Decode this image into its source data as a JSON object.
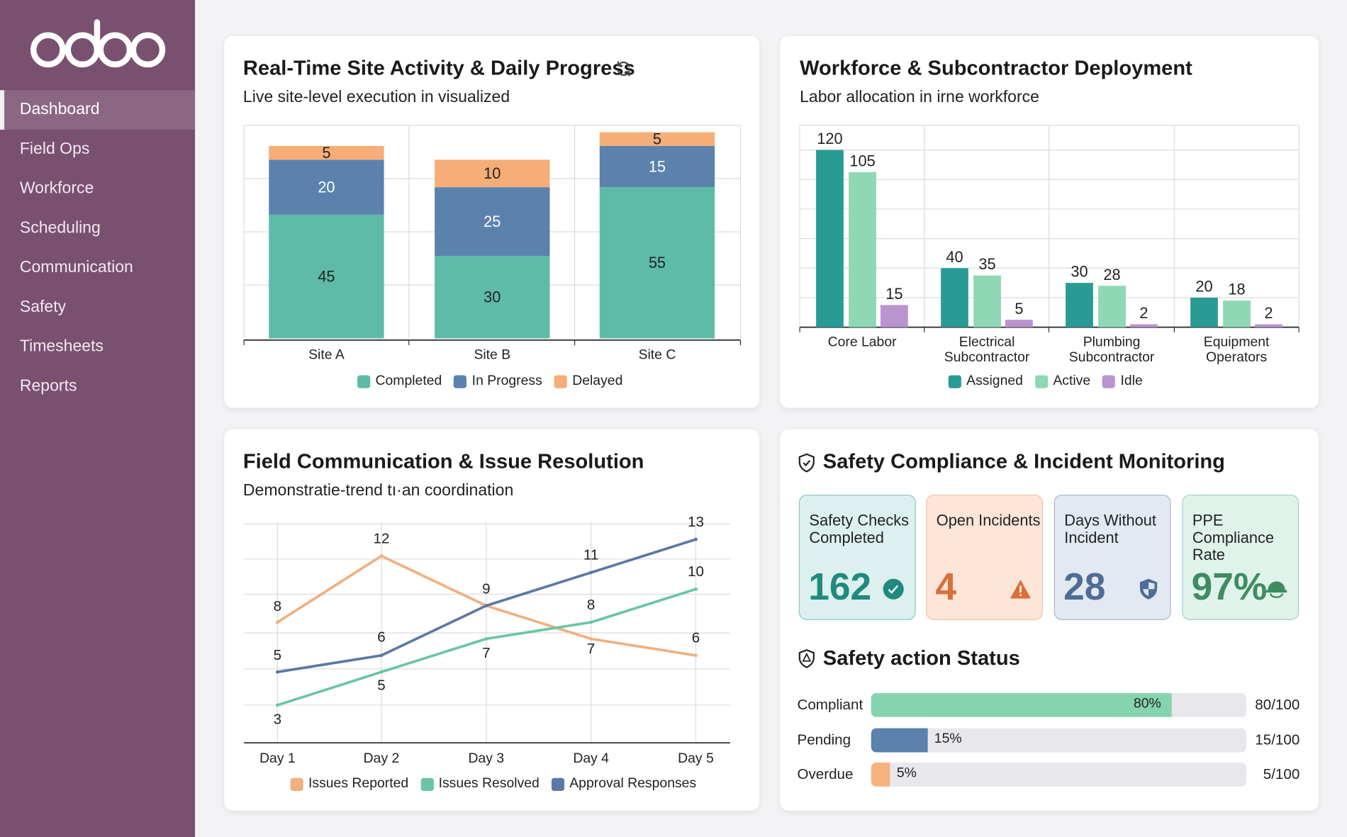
{
  "app": {
    "logo_text": "odoo"
  },
  "sidebar": {
    "items": [
      {
        "label": "Dashboard",
        "active": true
      },
      {
        "label": "Field Ops"
      },
      {
        "label": "Workforce"
      },
      {
        "label": "Scheduling"
      },
      {
        "label": "Communication"
      },
      {
        "label": "Safety"
      },
      {
        "label": "Timesheets"
      },
      {
        "label": "Reports"
      }
    ]
  },
  "cards": {
    "site_activity": {
      "title": "Real-Time Site Activity & Daily Progress",
      "subtitle": "Live site-level execution in visualized",
      "icon": "refresh-icon"
    },
    "workforce": {
      "title": "Workforce & Subcontractor Deployment",
      "subtitle": "Labor allocation in irne workforce"
    },
    "communication": {
      "title": "Field Communication & Issue Resolution",
      "subtitle": "Demonstratie-trend tı·an coordination"
    },
    "safety": {
      "title": "Safety Compliance & Incident Monitoring",
      "icon": "shield-check-icon"
    }
  },
  "chart_data": [
    {
      "type": "bar",
      "stacked": true,
      "categories": [
        "Site A",
        "Site B",
        "Site C"
      ],
      "series": [
        {
          "name": "Completed",
          "values": [
            45,
            30,
            55
          ],
          "color": "#5dbba8"
        },
        {
          "name": "In Progress",
          "values": [
            20,
            25,
            15
          ],
          "color": "#5b82ad"
        },
        {
          "name": "Delayed",
          "values": [
            5,
            10,
            5
          ],
          "color": "#f6ad78"
        }
      ],
      "grid": true,
      "legend": "bottom"
    },
    {
      "type": "bar",
      "categories": [
        "Core Labor",
        "Electrical Subcontractor",
        "Plumbing Subcontractor",
        "Equipment Operators"
      ],
      "categories_display": [
        [
          "Core Labor"
        ],
        [
          "Electrical",
          "Subcontractor"
        ],
        [
          "Plumbing",
          "Subcontractor"
        ],
        [
          "Equipment",
          "Operators"
        ]
      ],
      "series": [
        {
          "name": "Assigned",
          "values": [
            120,
            40,
            30,
            20
          ],
          "color": "#2a9a94"
        },
        {
          "name": "Active",
          "values": [
            105,
            35,
            28,
            18
          ],
          "color": "#8fd8b5"
        },
        {
          "name": "Idle",
          "values": [
            15,
            5,
            2,
            2
          ],
          "color": "#b994cf"
        }
      ],
      "grid": true,
      "legend": "bottom"
    },
    {
      "type": "line",
      "categories": [
        "Day 1",
        "Day 2",
        "Day 3",
        "Day 4",
        "Day 5"
      ],
      "series": [
        {
          "name": "Issues Reported",
          "values": [
            8,
            12,
            9,
            7,
            6
          ],
          "color": "#f0b07f"
        },
        {
          "name": "Issues Resolved",
          "values": [
            3,
            5,
            7,
            8,
            10
          ],
          "color": "#6cc4a4"
        },
        {
          "name": "Approval Responses",
          "values": [
            5,
            6,
            9,
            11,
            13
          ],
          "color": "#5b78a4"
        }
      ],
      "grid": true,
      "legend": "bottom"
    }
  ],
  "safety": {
    "tiles": [
      {
        "label": "Safety Checks Completed",
        "value": "162",
        "icon": "check-circle-icon",
        "color": "#1f8a7d"
      },
      {
        "label": "Open Incidents",
        "value": "4",
        "icon": "warning-icon",
        "color": "#d9703a"
      },
      {
        "label": "Days Without Incident",
        "value": "28",
        "icon": "shield-icon",
        "color": "#4e6d96"
      },
      {
        "label": "PPE Compliance Rate",
        "value": "97%",
        "icon": "hard-hat-icon",
        "color": "#3f8c63"
      }
    ],
    "status_title": "Safety action Status",
    "status_icon": "shield-alert-icon",
    "status_rows": [
      {
        "label": "Compliant",
        "percent": 80,
        "pct_label": "80%",
        "ratio": "80/100",
        "color": "#86d3b0"
      },
      {
        "label": "Pending",
        "percent": 15,
        "pct_label": "15%",
        "ratio": "15/100",
        "color": "#5b82ad"
      },
      {
        "label": "Overdue",
        "percent": 5,
        "pct_label": "5%",
        "ratio": "5/100",
        "color": "#f6b27e"
      }
    ]
  }
}
